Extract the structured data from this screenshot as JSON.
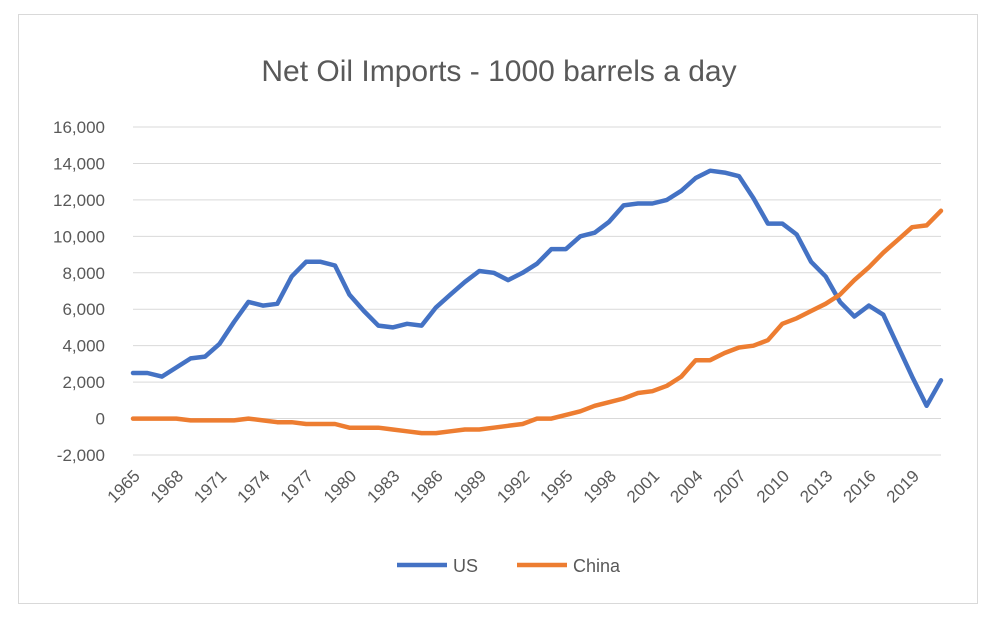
{
  "chart_data": {
    "type": "line",
    "title": "Net Oil Imports - 1000 barrels a day",
    "xlabel": "",
    "ylabel": "",
    "ylim": [
      -2000,
      16000
    ],
    "y_ticks": [
      "16,000",
      "14,000",
      "12,000",
      "10,000",
      "8,000",
      "6,000",
      "4,000",
      "2,000",
      "0",
      "-2,000"
    ],
    "y_tick_values": [
      16000,
      14000,
      12000,
      10000,
      8000,
      6000,
      4000,
      2000,
      0,
      -2000
    ],
    "x": [
      1965,
      1966,
      1967,
      1968,
      1969,
      1970,
      1971,
      1972,
      1973,
      1974,
      1975,
      1976,
      1977,
      1978,
      1979,
      1980,
      1981,
      1982,
      1983,
      1984,
      1985,
      1986,
      1987,
      1988,
      1989,
      1990,
      1991,
      1992,
      1993,
      1994,
      1995,
      1996,
      1997,
      1998,
      1999,
      2000,
      2001,
      2002,
      2003,
      2004,
      2005,
      2006,
      2007,
      2008,
      2009,
      2010,
      2011,
      2012,
      2013,
      2014,
      2015,
      2016,
      2017,
      2018,
      2019,
      2020,
      2021
    ],
    "x_tick_labels": [
      "1965",
      "1968",
      "1971",
      "1974",
      "1977",
      "1980",
      "1983",
      "1986",
      "1989",
      "1992",
      "1995",
      "1998",
      "2001",
      "2004",
      "2007",
      "2010",
      "2013",
      "2016",
      "2019"
    ],
    "grid": true,
    "legend_position": "bottom",
    "series": [
      {
        "name": "US",
        "color": "#4472c4",
        "values": [
          2500,
          2500,
          2300,
          2800,
          3300,
          3400,
          4100,
          5300,
          6400,
          6200,
          6300,
          7800,
          8600,
          8600,
          8400,
          6800,
          5900,
          5100,
          5000,
          5200,
          5100,
          6100,
          6800,
          7500,
          8100,
          8000,
          7600,
          8000,
          8500,
          9300,
          9300,
          10000,
          10200,
          10800,
          11700,
          11800,
          11800,
          12000,
          12500,
          13200,
          13600,
          13500,
          13300,
          12100,
          10700,
          10700,
          10100,
          8600,
          7800,
          6400,
          5600,
          6200,
          5700,
          4000,
          2300,
          700,
          2100
        ]
      },
      {
        "name": "China",
        "color": "#ed7d31",
        "values": [
          0,
          0,
          0,
          0,
          -100,
          -100,
          -100,
          -100,
          0,
          -100,
          -200,
          -200,
          -300,
          -300,
          -300,
          -500,
          -500,
          -500,
          -600,
          -700,
          -800,
          -800,
          -700,
          -600,
          -600,
          -500,
          -400,
          -300,
          0,
          0,
          200,
          400,
          700,
          900,
          1100,
          1400,
          1500,
          1800,
          2300,
          3200,
          3200,
          3600,
          3900,
          4000,
          4300,
          5200,
          5500,
          5900,
          6300,
          6800,
          7600,
          8300,
          9100,
          9800,
          10500,
          10600,
          11400
        ]
      }
    ]
  }
}
